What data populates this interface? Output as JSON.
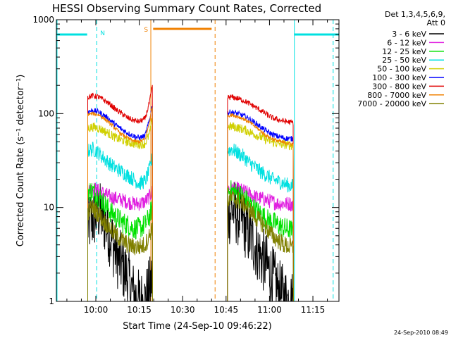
{
  "chart_data": {
    "type": "line",
    "title": "HESSI Observing Summary Count Rates, Corrected",
    "xlabel": "Start Time (24-Sep-10 09:46:22)",
    "ylabel": "Corrected Count Rate (s⁻¹ detector⁻¹)",
    "ylim": [
      1,
      1000
    ],
    "yscale": "log",
    "xlim_minutes_of_day": [
      586.367,
      684.0
    ],
    "x_ticks": [
      {
        "label": "10:00",
        "minute": 600
      },
      {
        "label": "10:15",
        "minute": 615
      },
      {
        "label": "10:30",
        "minute": 630
      },
      {
        "label": "10:45",
        "minute": 645
      },
      {
        "label": "11:00",
        "minute": 660
      },
      {
        "label": "11:15",
        "minute": 675
      }
    ],
    "y_ticks": [
      {
        "label": "1",
        "value": 1
      },
      {
        "label": "10",
        "value": 10
      },
      {
        "label": "100",
        "value": 100
      },
      {
        "label": "1000",
        "value": 1000
      }
    ],
    "legend": {
      "header": [
        "Det 1,3,4,5,6,9,",
        "Att 0"
      ],
      "placement": "right"
    },
    "segments": [
      {
        "name": "day-1",
        "start": 597.0,
        "end": 619.8
      },
      {
        "name": "day-2",
        "start": 645.3,
        "end": 668.5
      }
    ],
    "series": [
      {
        "name": "3 - 6 keV",
        "color": "#000000",
        "seg1": [
          [
            597.2,
            6.5
          ],
          [
            599,
            7.5
          ],
          [
            601,
            9
          ],
          [
            603,
            7
          ],
          [
            605,
            5
          ],
          [
            607,
            3.2
          ],
          [
            609,
            2.4
          ],
          [
            611,
            1.8
          ],
          [
            613,
            1.2
          ],
          [
            615,
            1.0
          ],
          [
            617,
            1.0
          ],
          [
            618,
            1.2
          ],
          [
            619,
            1.5
          ],
          [
            619.6,
            2.0
          ]
        ],
        "seg2": [
          [
            645.5,
            8
          ],
          [
            647,
            9.5
          ],
          [
            649,
            8.5
          ],
          [
            651,
            7
          ],
          [
            653,
            5
          ],
          [
            655,
            4
          ],
          [
            657,
            3
          ],
          [
            659,
            2.4
          ],
          [
            661,
            1.8
          ],
          [
            663,
            1.3
          ],
          [
            665,
            1.1
          ],
          [
            667,
            1.0
          ],
          [
            668.3,
            1.0
          ]
        ],
        "noise": 0.35
      },
      {
        "name": "6 - 12 keV",
        "color": "#e020e0",
        "seg1": [
          [
            597.2,
            15
          ],
          [
            599,
            16
          ],
          [
            601,
            15
          ],
          [
            603,
            14
          ],
          [
            605,
            13
          ],
          [
            607,
            12.5
          ],
          [
            609,
            12
          ],
          [
            611,
            11.5
          ],
          [
            613,
            11
          ],
          [
            615,
            11
          ],
          [
            617,
            11.5
          ],
          [
            618.5,
            13
          ],
          [
            619.6,
            15
          ]
        ],
        "seg2": [
          [
            645.5,
            16
          ],
          [
            647,
            16
          ],
          [
            649,
            15.5
          ],
          [
            651,
            15
          ],
          [
            653,
            14
          ],
          [
            655,
            13
          ],
          [
            657,
            12.5
          ],
          [
            659,
            12
          ],
          [
            661,
            11.5
          ],
          [
            663,
            11
          ],
          [
            665,
            11
          ],
          [
            667,
            11
          ],
          [
            668.3,
            10.5
          ]
        ],
        "noise": 0.08
      },
      {
        "name": "12 - 25 keV",
        "color": "#00e000",
        "seg1": [
          [
            597.2,
            15
          ],
          [
            599,
            15
          ],
          [
            601,
            13
          ],
          [
            603,
            11
          ],
          [
            605,
            9
          ],
          [
            607,
            8
          ],
          [
            609,
            7
          ],
          [
            611,
            6.5
          ],
          [
            613,
            6
          ],
          [
            615,
            6
          ],
          [
            617,
            6.5
          ],
          [
            618.5,
            8
          ],
          [
            619.6,
            10
          ]
        ],
        "seg2": [
          [
            645.5,
            15
          ],
          [
            647,
            15
          ],
          [
            649,
            14
          ],
          [
            651,
            13
          ],
          [
            653,
            11
          ],
          [
            655,
            9.5
          ],
          [
            657,
            8.5
          ],
          [
            659,
            7.5
          ],
          [
            661,
            7
          ],
          [
            663,
            6.5
          ],
          [
            665,
            6
          ],
          [
            667,
            5.8
          ],
          [
            668.3,
            5.5
          ]
        ],
        "noise": 0.12
      },
      {
        "name": "25 - 50 keV",
        "color": "#00e0e0",
        "seg1": [
          [
            597.2,
            40
          ],
          [
            599,
            42
          ],
          [
            601,
            38
          ],
          [
            603,
            33
          ],
          [
            605,
            29
          ],
          [
            607,
            26
          ],
          [
            609,
            24
          ],
          [
            611,
            22
          ],
          [
            613,
            20
          ],
          [
            615,
            18
          ],
          [
            617,
            19
          ],
          [
            618.5,
            25
          ],
          [
            619.6,
            35
          ]
        ],
        "seg2": [
          [
            645.5,
            40
          ],
          [
            647,
            42
          ],
          [
            649,
            38
          ],
          [
            651,
            35
          ],
          [
            653,
            30
          ],
          [
            655,
            27
          ],
          [
            657,
            24
          ],
          [
            659,
            22
          ],
          [
            661,
            20
          ],
          [
            663,
            19
          ],
          [
            665,
            18
          ],
          [
            667,
            17
          ],
          [
            668.3,
            17
          ]
        ],
        "noise": 0.08
      },
      {
        "name": "50 - 100 keV",
        "color": "#d0d000",
        "seg1": [
          [
            597.2,
            70
          ],
          [
            599,
            72
          ],
          [
            601,
            70
          ],
          [
            603,
            65
          ],
          [
            605,
            60
          ],
          [
            607,
            55
          ],
          [
            609,
            52
          ],
          [
            611,
            50
          ],
          [
            613,
            48
          ],
          [
            615,
            47
          ],
          [
            617,
            48
          ],
          [
            618.5,
            60
          ],
          [
            619.6,
            90
          ]
        ],
        "seg2": [
          [
            645.5,
            72
          ],
          [
            647,
            73
          ],
          [
            649,
            71
          ],
          [
            651,
            68
          ],
          [
            653,
            64
          ],
          [
            655,
            60
          ],
          [
            657,
            56
          ],
          [
            659,
            53
          ],
          [
            661,
            50
          ],
          [
            663,
            48
          ],
          [
            665,
            47
          ],
          [
            667,
            46
          ],
          [
            668.3,
            46
          ]
        ],
        "noise": 0.05
      },
      {
        "name": "100 - 300 keV",
        "color": "#0000ff",
        "seg1": [
          [
            597.2,
            105
          ],
          [
            599,
            108
          ],
          [
            601,
            104
          ],
          [
            603,
            95
          ],
          [
            605,
            85
          ],
          [
            607,
            75
          ],
          [
            609,
            68
          ],
          [
            611,
            62
          ],
          [
            613,
            58
          ],
          [
            615,
            55
          ],
          [
            617,
            58
          ],
          [
            618.5,
            85
          ],
          [
            619.6,
            130
          ]
        ],
        "seg2": [
          [
            645.5,
            102
          ],
          [
            647,
            104
          ],
          [
            649,
            100
          ],
          [
            651,
            95
          ],
          [
            653,
            88
          ],
          [
            655,
            80
          ],
          [
            657,
            72
          ],
          [
            659,
            65
          ],
          [
            661,
            60
          ],
          [
            663,
            57
          ],
          [
            665,
            55
          ],
          [
            667,
            54
          ],
          [
            668.3,
            54
          ]
        ],
        "noise": 0.03
      },
      {
        "name": "300 - 800 keV",
        "color": "#e00000",
        "seg1": [
          [
            597.2,
            150
          ],
          [
            599,
            155
          ],
          [
            601,
            150
          ],
          [
            603,
            138
          ],
          [
            605,
            125
          ],
          [
            607,
            110
          ],
          [
            609,
            100
          ],
          [
            611,
            90
          ],
          [
            613,
            85
          ],
          [
            615,
            82
          ],
          [
            617,
            88
          ],
          [
            618.5,
            130
          ],
          [
            619.6,
            200
          ]
        ],
        "seg2": [
          [
            645.5,
            148
          ],
          [
            647,
            150
          ],
          [
            649,
            145
          ],
          [
            651,
            138
          ],
          [
            653,
            128
          ],
          [
            655,
            118
          ],
          [
            657,
            108
          ],
          [
            659,
            98
          ],
          [
            661,
            90
          ],
          [
            663,
            86
          ],
          [
            665,
            83
          ],
          [
            667,
            81
          ],
          [
            668.3,
            80
          ]
        ],
        "noise": 0.03
      },
      {
        "name": "800 - 7000 keV",
        "color": "#f08000",
        "seg1": [
          [
            597.2,
            98
          ],
          [
            599,
            100
          ],
          [
            601,
            97
          ],
          [
            603,
            88
          ],
          [
            605,
            78
          ],
          [
            607,
            68
          ],
          [
            609,
            60
          ],
          [
            611,
            55
          ],
          [
            613,
            51
          ],
          [
            615,
            50
          ],
          [
            617,
            53
          ],
          [
            618.5,
            80
          ],
          [
            619.6,
            125
          ]
        ],
        "seg2": [
          [
            645.5,
            95
          ],
          [
            647,
            97
          ],
          [
            649,
            93
          ],
          [
            651,
            88
          ],
          [
            653,
            81
          ],
          [
            655,
            73
          ],
          [
            657,
            65
          ],
          [
            659,
            58
          ],
          [
            661,
            54
          ],
          [
            663,
            51
          ],
          [
            665,
            49
          ],
          [
            667,
            48
          ],
          [
            668.3,
            47
          ]
        ],
        "noise": 0.02
      },
      {
        "name": "7000 - 20000 keV",
        "color": "#808000",
        "seg1": [
          [
            597.2,
            9
          ],
          [
            599,
            10
          ],
          [
            601,
            8.5
          ],
          [
            603,
            7
          ],
          [
            605,
            6
          ],
          [
            607,
            5
          ],
          [
            609,
            4.5
          ],
          [
            611,
            4
          ],
          [
            613,
            3.8
          ],
          [
            615,
            3.8
          ],
          [
            617,
            4
          ],
          [
            618.5,
            5
          ],
          [
            619.6,
            6.5
          ]
        ],
        "seg2": [
          [
            645.5,
            12
          ],
          [
            647,
            12.5
          ],
          [
            649,
            12
          ],
          [
            651,
            11
          ],
          [
            653,
            9.5
          ],
          [
            655,
            8
          ],
          [
            657,
            7
          ],
          [
            659,
            6
          ],
          [
            661,
            5
          ],
          [
            663,
            4.5
          ],
          [
            665,
            4
          ],
          [
            667,
            3.8
          ],
          [
            668.3,
            3.7
          ]
        ],
        "noise": 0.1
      }
    ],
    "annotations": {
      "night": [
        {
          "start": 586.37,
          "end": 597.0,
          "label": ""
        },
        {
          "start": 668.5,
          "end": 684.0,
          "label": ""
        }
      ],
      "saa": {
        "start": 619.8,
        "end": 640.0,
        "label": "S"
      },
      "n_marker": {
        "label": "N"
      },
      "dashed_lines_cyan": [
        600.3,
        682.0
      ],
      "dashed_line_orange": 641.2,
      "solid_lines_cyan": [
        586.6,
        668.6
      ],
      "solid_line_orange": 619.0
    },
    "footer_timestamp": "24-Sep-2010 08:49"
  }
}
